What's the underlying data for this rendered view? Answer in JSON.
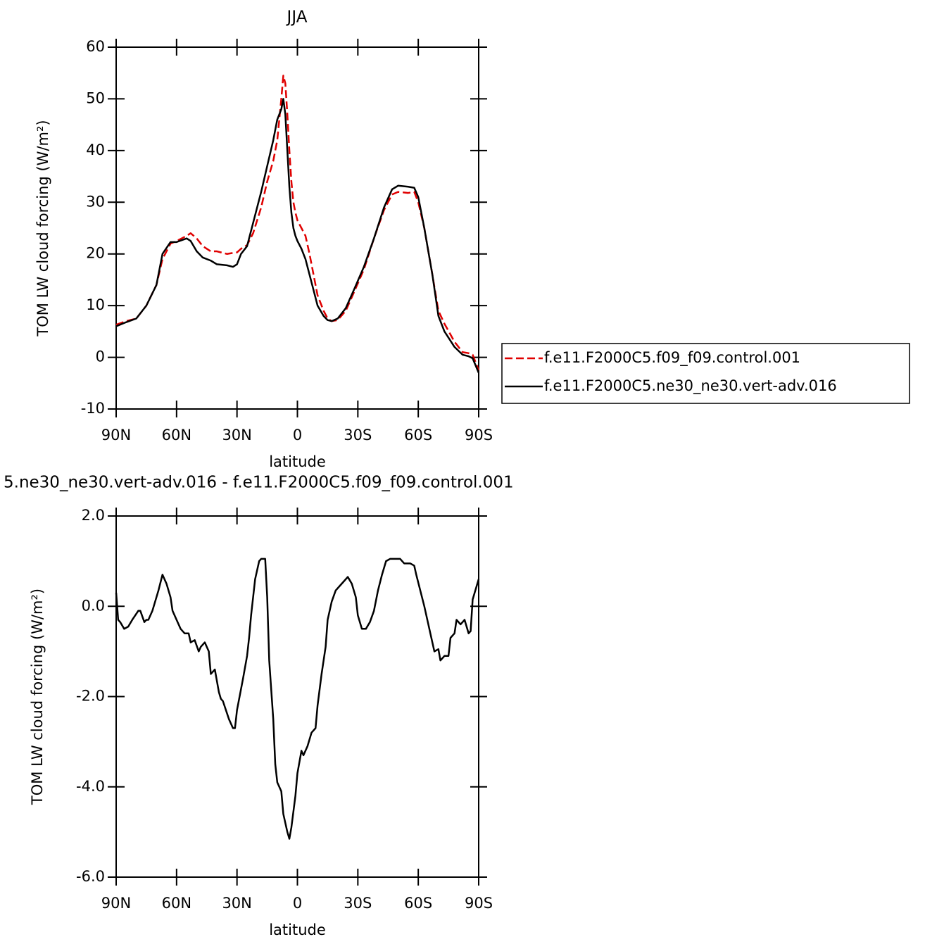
{
  "chart_data": [
    {
      "type": "line",
      "title": "JJA",
      "xlabel": "latitude",
      "ylabel": "TOM LW cloud forcing (W/m²)",
      "xlim": [
        90,
        -90
      ],
      "ylim": [
        -10,
        60
      ],
      "xticks": [
        {
          "value": 90,
          "label": "90N"
        },
        {
          "value": 60,
          "label": "60N"
        },
        {
          "value": 30,
          "label": "30N"
        },
        0,
        {
          "value": -30,
          "label": "30S"
        },
        {
          "value": -60,
          "label": "60S"
        },
        {
          "value": -90,
          "label": "90S"
        }
      ],
      "yticks": [
        -10,
        0,
        10,
        20,
        30,
        40,
        50,
        60
      ],
      "legend": "right",
      "x": [
        90,
        85,
        80,
        75,
        70,
        67,
        63,
        60,
        55,
        53,
        50,
        47,
        43,
        40,
        35,
        32,
        30,
        28,
        25,
        22,
        18,
        15,
        12,
        10,
        8,
        7,
        6,
        5,
        4,
        3,
        2,
        1,
        0,
        -2,
        -4,
        -6,
        -8,
        -10,
        -13,
        -15,
        -17,
        -20,
        -24,
        -28,
        -33,
        -38,
        -43,
        -47,
        -50,
        -55,
        -58,
        -60,
        -63,
        -67,
        -70,
        -73,
        -78,
        -82,
        -85,
        -87,
        -90
      ],
      "series": [
        {
          "name": "f.e11.F2000C5.f09_f09.control.001",
          "color": "#e00000",
          "linestyle": "dashed",
          "values": [
            6.3,
            7,
            7.5,
            10,
            14,
            19,
            22,
            22.5,
            23.5,
            24,
            23,
            21.5,
            20.5,
            20.5,
            20,
            20.2,
            20.3,
            21,
            21.7,
            24,
            29,
            34,
            38,
            42,
            50,
            54.5,
            53,
            47,
            40,
            34,
            30,
            28,
            26.5,
            25,
            23.5,
            20,
            16,
            12,
            9,
            7.5,
            7,
            7.2,
            9,
            12.5,
            17,
            23,
            28.5,
            31.5,
            32,
            31.8,
            32,
            30,
            25,
            16,
            9,
            6.5,
            3,
            1,
            0.8,
            0.5,
            -2.5
          ]
        },
        {
          "name": "f.e11.F2000C5.ne30_ne30.vert-adv.016",
          "color": "#000000",
          "linestyle": "solid",
          "values": [
            6,
            6.8,
            7.5,
            10,
            14,
            20,
            22.3,
            22.3,
            23,
            22.5,
            20.5,
            19.3,
            18.7,
            18,
            17.8,
            17.5,
            18,
            20,
            21.5,
            26,
            32,
            37,
            42,
            46,
            48,
            50,
            47,
            40,
            33,
            28,
            25,
            23.5,
            22.5,
            21,
            19,
            16,
            13,
            10,
            8,
            7.2,
            7,
            7.5,
            9.5,
            13,
            17.5,
            23,
            29,
            32.5,
            33.2,
            33,
            32.8,
            31,
            25,
            16,
            8,
            5,
            2,
            0.5,
            0.2,
            -0.2,
            -3
          ]
        }
      ]
    },
    {
      "type": "line",
      "title": "5.ne30_ne30.vert-adv.016 - f.e11.F2000C5.f09_f09.control.001",
      "xlabel": "latitude",
      "ylabel": "TOM LW cloud forcing (W/m²)",
      "xlim": [
        90,
        -90
      ],
      "ylim": [
        -6,
        2
      ],
      "xticks": [
        {
          "value": 90,
          "label": "90N"
        },
        {
          "value": 60,
          "label": "60N"
        },
        {
          "value": 30,
          "label": "30N"
        },
        0,
        {
          "value": -30,
          "label": "30S"
        },
        {
          "value": -60,
          "label": "60S"
        },
        {
          "value": -90,
          "label": "90S"
        }
      ],
      "yticks": [
        {
          "value": -6,
          "label": "-6.0"
        },
        {
          "value": -4,
          "label": "-4.0"
        },
        {
          "value": -2,
          "label": "-2.0"
        },
        {
          "value": 0,
          "label": "0.0"
        },
        {
          "value": 2,
          "label": "2.0"
        }
      ],
      "color": "#000000",
      "x": [
        90,
        89,
        88,
        86,
        84,
        82,
        79,
        78,
        76,
        75,
        74,
        72,
        70,
        69,
        67,
        65,
        63,
        62,
        60,
        58,
        56,
        54,
        53,
        51,
        49,
        48,
        46,
        44,
        43,
        41,
        39,
        38,
        37,
        34,
        32,
        31,
        30,
        27,
        25,
        24,
        23,
        21,
        19,
        18,
        16,
        15,
        14,
        12,
        11,
        10,
        8,
        7,
        5,
        4,
        3,
        1,
        0,
        -2,
        -3,
        -5,
        -7,
        -9,
        -10,
        -12,
        -14,
        -15,
        -17,
        -19,
        -21,
        -23,
        -25,
        -27,
        -29,
        -30,
        -32,
        -34,
        -36,
        -38,
        -40,
        -42,
        -44,
        -46,
        -49,
        -51,
        -53,
        -56,
        -58,
        -59,
        -61,
        -63,
        -65,
        -67,
        -68,
        -70,
        -71,
        -73,
        -75,
        -76,
        -78,
        -79,
        -81,
        -83,
        -85,
        -86,
        -87,
        -90
      ],
      "values": [
        0.3,
        -0.3,
        -0.35,
        -0.5,
        -0.45,
        -0.3,
        -0.1,
        -0.1,
        -0.35,
        -0.3,
        -0.3,
        -0.1,
        0.2,
        0.35,
        0.7,
        0.5,
        0.2,
        -0.1,
        -0.3,
        -0.5,
        -0.6,
        -0.6,
        -0.8,
        -0.75,
        -1.0,
        -0.9,
        -0.8,
        -1.0,
        -1.5,
        -1.4,
        -1.9,
        -2.05,
        -2.1,
        -2.5,
        -2.7,
        -2.7,
        -2.3,
        -1.6,
        -1.1,
        -0.7,
        -0.2,
        0.6,
        1.0,
        1.05,
        1.05,
        0.2,
        -1.2,
        -2.5,
        -3.5,
        -3.9,
        -4.1,
        -4.6,
        -5.0,
        -5.15,
        -4.9,
        -4.2,
        -3.7,
        -3.2,
        -3.3,
        -3.1,
        -2.8,
        -2.7,
        -2.2,
        -1.5,
        -0.9,
        -0.3,
        0.1,
        0.35,
        0.45,
        0.55,
        0.65,
        0.5,
        0.2,
        -0.2,
        -0.5,
        -0.5,
        -0.35,
        -0.1,
        0.35,
        0.7,
        1.0,
        1.05,
        1.05,
        1.05,
        0.95,
        0.95,
        0.9,
        0.7,
        0.35,
        0.0,
        -0.4,
        -0.8,
        -1.0,
        -0.95,
        -1.2,
        -1.1,
        -1.1,
        -0.7,
        -0.6,
        -0.3,
        -0.4,
        -0.3,
        -0.6,
        -0.55,
        0.15,
        0.6
      ]
    }
  ]
}
